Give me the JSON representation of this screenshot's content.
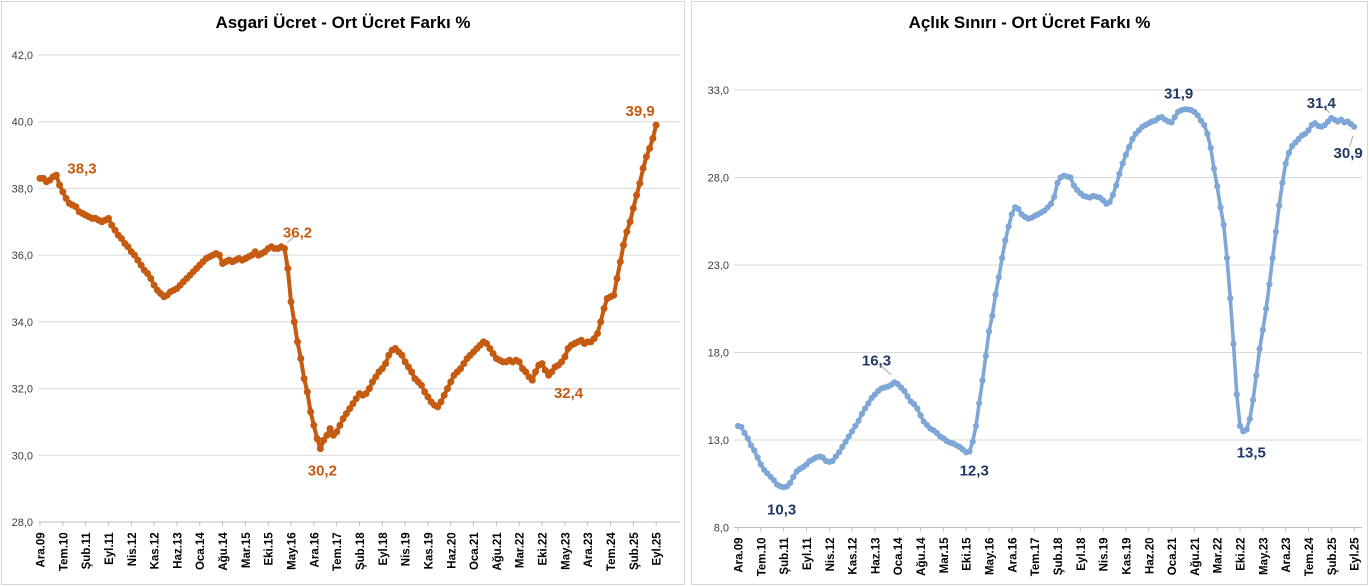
{
  "chart_data": [
    {
      "type": "line",
      "title": "Asgari Ücret - Ort Ücret Farkı %",
      "grid": "horizontal",
      "legend": "none",
      "ylim": [
        28,
        42
      ],
      "ytick_step": 2,
      "ytick_values": [
        28,
        30,
        32,
        34,
        36,
        38,
        40,
        42
      ],
      "ytick_labels": [
        "28,0",
        "30,0",
        "32,0",
        "34,0",
        "36,0",
        "38,0",
        "40,0",
        "42,0"
      ],
      "x_tick_interval_months": 7,
      "x_ticklabels": [
        "Ara.09",
        "Tem.10",
        "Şub.11",
        "Eyl.11",
        "Nis.12",
        "Kas.12",
        "Haz.13",
        "Oca.14",
        "Ağu.14",
        "Mar.15",
        "Eki.15",
        "May.16",
        "Ara.16",
        "Tem.17",
        "Şub.18",
        "Eyl.18",
        "Nis.19",
        "Kas.19",
        "Haz.20",
        "Oca.21",
        "Ağu.21",
        "Mar.22",
        "Eki.22",
        "May.23",
        "Ara.23",
        "Tem.24",
        "Şub.25",
        "Eyl.25"
      ],
      "series": [
        {
          "name": "Asgari Ücret - Ort Ücret Farkı %",
          "color": "#C55A11",
          "values": [
            38.3,
            38.3,
            38.2,
            38.25,
            38.35,
            38.4,
            38.1,
            37.9,
            37.7,
            37.55,
            37.5,
            37.45,
            37.3,
            37.25,
            37.2,
            37.15,
            37.1,
            37.1,
            37.05,
            37.0,
            37.05,
            37.1,
            36.9,
            36.75,
            36.6,
            36.5,
            36.35,
            36.25,
            36.1,
            36.0,
            35.85,
            35.7,
            35.55,
            35.45,
            35.3,
            35.1,
            34.95,
            34.85,
            34.75,
            34.8,
            34.9,
            34.95,
            35.0,
            35.1,
            35.2,
            35.3,
            35.4,
            35.5,
            35.6,
            35.7,
            35.8,
            35.9,
            35.95,
            36.0,
            36.05,
            36.0,
            35.75,
            35.8,
            35.85,
            35.8,
            35.85,
            35.9,
            35.85,
            35.9,
            35.95,
            36.0,
            36.1,
            36.0,
            36.05,
            36.1,
            36.2,
            36.25,
            36.2,
            36.2,
            36.25,
            36.2,
            35.6,
            34.6,
            34.0,
            33.4,
            32.9,
            32.3,
            31.9,
            31.3,
            30.9,
            30.5,
            30.2,
            30.45,
            30.6,
            30.8,
            30.6,
            30.7,
            30.9,
            31.1,
            31.25,
            31.4,
            31.55,
            31.7,
            31.85,
            31.8,
            31.85,
            32.0,
            32.2,
            32.35,
            32.5,
            32.6,
            32.75,
            33.0,
            33.15,
            33.2,
            33.1,
            33.0,
            32.8,
            32.65,
            32.5,
            32.3,
            32.2,
            32.1,
            31.9,
            31.75,
            31.6,
            31.5,
            31.45,
            31.6,
            31.8,
            32.0,
            32.2,
            32.4,
            32.5,
            32.6,
            32.75,
            32.9,
            33.0,
            33.1,
            33.2,
            33.3,
            33.4,
            33.35,
            33.2,
            33.05,
            32.9,
            32.85,
            32.8,
            32.8,
            32.85,
            32.8,
            32.85,
            32.8,
            32.6,
            32.5,
            32.35,
            32.25,
            32.5,
            32.7,
            32.75,
            32.55,
            32.4,
            32.5,
            32.65,
            32.7,
            32.8,
            32.95,
            33.2,
            33.3,
            33.35,
            33.4,
            33.45,
            33.35,
            33.4,
            33.4,
            33.5,
            33.65,
            34.0,
            34.4,
            34.7,
            34.75,
            34.8,
            35.3,
            35.8,
            36.3,
            36.7,
            37.0,
            37.4,
            37.8,
            38.15,
            38.6,
            38.95,
            39.2,
            39.5,
            39.9
          ]
        }
      ],
      "point_labels": [
        {
          "x_index": 0,
          "label": "38,3"
        },
        {
          "x_index": 75,
          "label": "36,2"
        },
        {
          "x_index": 86,
          "label": "30,2"
        },
        {
          "x_index": 156,
          "label": "32,4"
        },
        {
          "x_index": 189,
          "label": "39,9"
        }
      ],
      "annotation_color": "#C55A11"
    },
    {
      "type": "line",
      "title": "Açlık Sınırı - Ort Ücret Farkı %",
      "grid": "horizontal",
      "legend": "none",
      "ylim": [
        8,
        33
      ],
      "ytick_step": 5,
      "ytick_values": [
        8,
        13,
        18,
        23,
        28,
        33
      ],
      "ytick_labels": [
        "8,0",
        "13,0",
        "18,0",
        "23,0",
        "28,0",
        "33,0"
      ],
      "x_tick_interval_months": 7,
      "x_ticklabels": [
        "Ara.09",
        "Tem.10",
        "Şub.11",
        "Eyl.11",
        "Nis.12",
        "Kas.12",
        "Haz.13",
        "Oca.14",
        "Ağu.14",
        "Mar.15",
        "Eki.15",
        "May.16",
        "Ara.16",
        "Tem.17",
        "Şub.18",
        "Eyl.18",
        "Nis.19",
        "Kas.19",
        "Haz.20",
        "Oca.21",
        "Ağu.21",
        "Mar.22",
        "Eki.22",
        "May.23",
        "Ara.23",
        "Tem.24",
        "Şub.25",
        "Eyl.25"
      ],
      "series": [
        {
          "name": "Açlık Sınırı - Ort Ücret Farkı %",
          "color": "#7EA6D7",
          "values": [
            13.8,
            13.75,
            13.4,
            13.1,
            12.7,
            12.4,
            12.0,
            11.6,
            11.3,
            11.1,
            10.9,
            10.7,
            10.45,
            10.35,
            10.3,
            10.35,
            10.55,
            10.9,
            11.2,
            11.35,
            11.45,
            11.6,
            11.8,
            11.9,
            12.0,
            12.05,
            12.0,
            11.8,
            11.75,
            11.8,
            12.05,
            12.3,
            12.6,
            12.9,
            13.2,
            13.5,
            13.8,
            14.1,
            14.5,
            14.8,
            15.1,
            15.4,
            15.6,
            15.8,
            15.95,
            16.0,
            16.05,
            16.15,
            16.3,
            16.2,
            16.0,
            15.8,
            15.5,
            15.2,
            15.05,
            14.8,
            14.4,
            14.05,
            13.85,
            13.65,
            13.55,
            13.4,
            13.2,
            13.1,
            12.95,
            12.85,
            12.8,
            12.7,
            12.6,
            12.45,
            12.3,
            12.35,
            12.9,
            13.8,
            15.1,
            16.4,
            17.8,
            19.2,
            20.1,
            21.3,
            22.3,
            23.4,
            24.4,
            25.2,
            25.9,
            26.3,
            26.2,
            25.9,
            25.75,
            25.65,
            25.7,
            25.8,
            25.9,
            26.0,
            26.1,
            26.3,
            26.5,
            26.9,
            27.7,
            28.0,
            28.1,
            28.05,
            28.0,
            27.55,
            27.3,
            27.1,
            26.95,
            26.9,
            26.85,
            26.95,
            26.9,
            26.85,
            26.7,
            26.5,
            26.6,
            27.0,
            27.55,
            28.2,
            28.8,
            29.3,
            29.75,
            30.2,
            30.5,
            30.7,
            30.9,
            31.0,
            31.1,
            31.2,
            31.25,
            31.4,
            31.45,
            31.3,
            31.2,
            31.15,
            31.45,
            31.75,
            31.85,
            31.9,
            31.9,
            31.85,
            31.75,
            31.55,
            31.25,
            31.0,
            30.5,
            29.7,
            28.5,
            27.5,
            26.3,
            25.3,
            23.4,
            21.1,
            18.5,
            15.6,
            13.8,
            13.5,
            13.6,
            14.2,
            15.3,
            16.7,
            18.2,
            19.3,
            20.5,
            21.9,
            23.4,
            24.9,
            26.4,
            27.7,
            28.8,
            29.4,
            29.8,
            30.0,
            30.2,
            30.4,
            30.5,
            30.7,
            31.0,
            31.1,
            30.95,
            30.9,
            31.0,
            31.2,
            31.4,
            31.3,
            31.2,
            31.3,
            31.15,
            31.2,
            31.05,
            30.9
          ]
        }
      ],
      "point_labels": [
        {
          "x_index": 14,
          "label": "10,3"
        },
        {
          "x_index": 48,
          "label": "16,3"
        },
        {
          "x_index": 70,
          "label": "12,3"
        },
        {
          "x_index": 137,
          "label": "31,9"
        },
        {
          "x_index": 155,
          "label": "13,5"
        },
        {
          "x_index": 182,
          "label": "31,4"
        },
        {
          "x_index": 189,
          "label": "30,9"
        }
      ],
      "annotation_color": "#1F3864"
    }
  ],
  "style_colors": {
    "gridline": "#d9d9d9",
    "axis_line": "#bfbfbf",
    "ytick_text": "#3f3f3f",
    "xtick_text": "#000000",
    "leader_line": "#a6a6a6",
    "panel_border": "#d6d6d6",
    "background": "#ffffff"
  }
}
